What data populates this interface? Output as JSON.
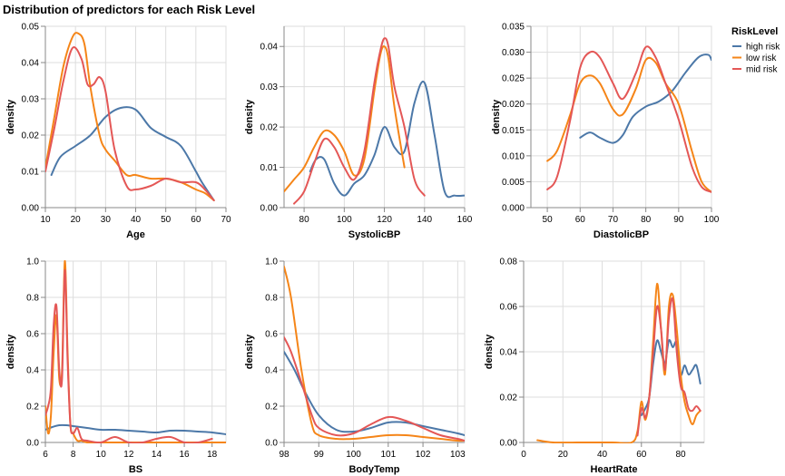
{
  "chart_data": {
    "title": "Distribution of predictors for each Risk Level",
    "legend": {
      "title": "RiskLevel",
      "placement": "top-right",
      "entries": [
        {
          "name": "high risk",
          "color": "#4c78a8"
        },
        {
          "name": "low risk",
          "color": "#f58518"
        },
        {
          "name": "mid risk",
          "color": "#e45756"
        }
      ]
    },
    "panels": [
      {
        "type": "line",
        "xlabel": "Age",
        "ylabel": "density",
        "xlim": [
          10,
          70
        ],
        "ylim": [
          0,
          0.05
        ],
        "grid": true,
        "xticks": [
          10,
          20,
          30,
          40,
          50,
          60,
          70
        ],
        "xtick_labels": [
          "10",
          "20",
          "30",
          "40",
          "50",
          "60",
          "70"
        ],
        "yticks": [
          0,
          0.01,
          0.02,
          0.03,
          0.04,
          0.05
        ],
        "ytick_labels": [
          "0.00",
          "0.01",
          "0.02",
          "0.03",
          "0.04",
          "0.05"
        ],
        "series": [
          {
            "name": "high risk",
            "x": [
              12,
              15,
              20,
              25,
              30,
              35,
              40,
              45,
              50,
              55,
              60,
              62,
              66
            ],
            "y": [
              0.009,
              0.014,
              0.017,
              0.02,
              0.025,
              0.0275,
              0.027,
              0.022,
              0.0195,
              0.017,
              0.01,
              0.007,
              0.002
            ]
          },
          {
            "name": "low risk",
            "x": [
              10,
              13,
              16,
              19,
              21,
              23,
              25,
              28,
              30,
              33,
              37,
              40,
              45,
              50,
              55,
              60,
              63,
              66
            ],
            "y": [
              0.011,
              0.025,
              0.039,
              0.047,
              0.048,
              0.045,
              0.033,
              0.02,
              0.016,
              0.013,
              0.009,
              0.009,
              0.008,
              0.008,
              0.007,
              0.005,
              0.004,
              0.002
            ]
          },
          {
            "name": "mid risk",
            "x": [
              10,
              13,
              16,
              19,
              22,
              24,
              26,
              28,
              30,
              33,
              37,
              40,
              45,
              50,
              55,
              60,
              63,
              66
            ],
            "y": [
              0.01,
              0.022,
              0.035,
              0.044,
              0.041,
              0.034,
              0.034,
              0.036,
              0.032,
              0.016,
              0.006,
              0.005,
              0.006,
              0.008,
              0.007,
              0.007,
              0.005,
              0.002
            ]
          }
        ]
      },
      {
        "type": "line",
        "xlabel": "SystolicBP",
        "ylabel": "density",
        "xlim": [
          70,
          160
        ],
        "ylim": [
          0,
          0.045
        ],
        "grid": true,
        "xticks": [
          80,
          100,
          120,
          140,
          160
        ],
        "xtick_labels": [
          "80",
          "100",
          "120",
          "140",
          "160"
        ],
        "yticks": [
          0,
          0.01,
          0.02,
          0.03,
          0.04
        ],
        "ytick_labels": [
          "0.00",
          "0.01",
          "0.02",
          "0.03",
          "0.04"
        ],
        "series": [
          {
            "name": "high risk",
            "x": [
              83,
              86,
              90,
              95,
              100,
              105,
              110,
              115,
              120,
              125,
              130,
              135,
              140,
              145,
              150,
              155,
              160
            ],
            "y": [
              0.009,
              0.012,
              0.012,
              0.006,
              0.003,
              0.006,
              0.008,
              0.013,
              0.02,
              0.015,
              0.014,
              0.026,
              0.031,
              0.018,
              0.004,
              0.003,
              0.003
            ]
          },
          {
            "name": "low risk",
            "x": [
              70,
              75,
              80,
              85,
              90,
              95,
              100,
              105,
              110,
              115,
              118,
              120,
              122,
              125,
              130
            ],
            "y": [
              0.004,
              0.007,
              0.01,
              0.015,
              0.019,
              0.018,
              0.014,
              0.008,
              0.012,
              0.029,
              0.038,
              0.04,
              0.037,
              0.025,
              0.01
            ]
          },
          {
            "name": "mid risk",
            "x": [
              75,
              80,
              85,
              90,
              95,
              100,
              105,
              110,
              115,
              118,
              120,
              122,
              125,
              130,
              135,
              140
            ],
            "y": [
              0.001,
              0.004,
              0.011,
              0.017,
              0.015,
              0.01,
              0.007,
              0.014,
              0.031,
              0.039,
              0.042,
              0.04,
              0.03,
              0.02,
              0.007,
              0.003
            ]
          }
        ]
      },
      {
        "type": "line",
        "xlabel": "DiastolicBP",
        "ylabel": "density",
        "xlim": [
          45,
          100
        ],
        "ylim": [
          0,
          0.035
        ],
        "grid": true,
        "xticks": [
          50,
          60,
          70,
          80,
          90,
          100
        ],
        "xtick_labels": [
          "50",
          "60",
          "70",
          "80",
          "90",
          "100"
        ],
        "yticks": [
          0,
          0.005,
          0.01,
          0.015,
          0.02,
          0.025,
          0.03,
          0.035
        ],
        "ytick_labels": [
          "0.000",
          "0.005",
          "0.010",
          "0.015",
          "0.020",
          "0.025",
          "0.030",
          "0.035"
        ],
        "series": [
          {
            "name": "high risk",
            "x": [
              60,
              63,
              66,
              70,
              73,
              76,
              80,
              84,
              88,
              92,
              96,
              99,
              100
            ],
            "y": [
              0.0135,
              0.0145,
              0.0135,
              0.0125,
              0.014,
              0.0175,
              0.0195,
              0.0205,
              0.0225,
              0.026,
              0.029,
              0.0295,
              0.0285
            ]
          },
          {
            "name": "low risk",
            "x": [
              50,
              53,
              57,
              60,
              63,
              66,
              70,
              73,
              77,
              80,
              83,
              86,
              90,
              94,
              97,
              100
            ],
            "y": [
              0.009,
              0.011,
              0.018,
              0.024,
              0.0255,
              0.024,
              0.019,
              0.018,
              0.023,
              0.0285,
              0.028,
              0.024,
              0.02,
              0.011,
              0.005,
              0.003
            ]
          },
          {
            "name": "mid risk",
            "x": [
              50,
              53,
              57,
              60,
              63,
              66,
              70,
              73,
              77,
              80,
              83,
              86,
              90,
              94,
              97,
              100
            ],
            "y": [
              0.0035,
              0.006,
              0.017,
              0.027,
              0.03,
              0.029,
              0.024,
              0.021,
              0.026,
              0.031,
              0.029,
              0.024,
              0.017,
              0.008,
              0.004,
              0.003
            ]
          }
        ]
      },
      {
        "type": "line",
        "xlabel": "BS",
        "ylabel": "density",
        "xlim": [
          6,
          19
        ],
        "ylim": [
          0,
          1.0
        ],
        "grid": true,
        "xticks": [
          6,
          8,
          10,
          12,
          14,
          16,
          18
        ],
        "xtick_labels": [
          "6",
          "8",
          "10",
          "12",
          "14",
          "16",
          "18"
        ],
        "yticks": [
          0,
          0.2,
          0.4,
          0.6,
          0.8,
          1.0
        ],
        "ytick_labels": [
          "0.0",
          "0.2",
          "0.4",
          "0.6",
          "0.8",
          "1.0"
        ],
        "series": [
          {
            "name": "high risk",
            "x": [
              6,
              6.5,
              7,
              7.5,
              8,
              9,
              10,
              11,
              12,
              13,
              14,
              15,
              16,
              17,
              18,
              19
            ],
            "y": [
              0.07,
              0.085,
              0.095,
              0.095,
              0.09,
              0.08,
              0.07,
              0.07,
              0.065,
              0.06,
              0.055,
              0.065,
              0.065,
              0.06,
              0.055,
              0.045
            ]
          },
          {
            "name": "low risk",
            "x": [
              6,
              6.2,
              6.4,
              6.6,
              6.8,
              7,
              7.2,
              7.4,
              7.6,
              7.8,
              8,
              8.3,
              8.6,
              9,
              10,
              12,
              14,
              16,
              19
            ],
            "y": [
              0.2,
              0.05,
              0.15,
              0.5,
              0.7,
              0.35,
              0.4,
              1.0,
              0.5,
              0.1,
              0.05,
              0.01,
              0.01,
              0.0,
              0.0,
              0.0,
              0.0,
              0.0,
              0.0
            ]
          },
          {
            "name": "mid risk",
            "x": [
              6,
              6.2,
              6.4,
              6.6,
              6.8,
              7,
              7.2,
              7.4,
              7.6,
              7.8,
              8,
              8.3,
              8.6,
              9,
              10,
              11,
              12,
              13,
              14,
              15,
              16,
              17,
              18
            ],
            "y": [
              0.15,
              0.2,
              0.3,
              0.65,
              0.75,
              0.4,
              0.35,
              0.95,
              0.45,
              0.1,
              0.05,
              0.08,
              0.02,
              0.01,
              0.0,
              0.03,
              0.0,
              0.0,
              0.02,
              0.03,
              0.0,
              0.0,
              0.02
            ]
          }
        ]
      },
      {
        "type": "line",
        "xlabel": "BodyTemp",
        "ylabel": "density",
        "xlim": [
          98,
          103.2
        ],
        "ylim": [
          0,
          1.0
        ],
        "grid": true,
        "xticks": [
          98,
          99,
          100,
          101,
          102,
          103
        ],
        "xtick_labels": [
          "98",
          "99",
          "100",
          "101",
          "102",
          "103"
        ],
        "yticks": [
          0,
          0.2,
          0.4,
          0.6,
          0.8,
          1.0
        ],
        "ytick_labels": [
          "0.0",
          "0.2",
          "0.4",
          "0.6",
          "0.8",
          "1.0"
        ],
        "series": [
          {
            "name": "high risk",
            "x": [
              98,
              98.3,
              98.6,
              99,
              99.5,
              100,
              100.5,
              101,
              101.5,
              102,
              102.5,
              103,
              103.2
            ],
            "y": [
              0.5,
              0.4,
              0.28,
              0.15,
              0.07,
              0.06,
              0.08,
              0.11,
              0.11,
              0.09,
              0.07,
              0.05,
              0.04
            ]
          },
          {
            "name": "low risk",
            "x": [
              98,
              98.2,
              98.5,
              98.8,
              99,
              99.5,
              100,
              100.5,
              101,
              101.5,
              102,
              102.5,
              103,
              103.2
            ],
            "y": [
              0.97,
              0.8,
              0.4,
              0.1,
              0.04,
              0.02,
              0.02,
              0.03,
              0.04,
              0.04,
              0.03,
              0.02,
              0.01,
              0.01
            ]
          },
          {
            "name": "mid risk",
            "x": [
              98,
              98.2,
              98.5,
              98.8,
              99,
              99.5,
              100,
              100.5,
              101,
              101.5,
              102,
              102.5,
              103,
              103.2
            ],
            "y": [
              0.58,
              0.5,
              0.33,
              0.15,
              0.08,
              0.04,
              0.05,
              0.1,
              0.14,
              0.12,
              0.08,
              0.04,
              0.02,
              0.01
            ]
          }
        ]
      },
      {
        "type": "line",
        "xlabel": "HeartRate",
        "ylabel": "density",
        "xlim": [
          0,
          92
        ],
        "ylim": [
          0,
          0.08
        ],
        "grid": true,
        "xticks": [
          0,
          20,
          40,
          60,
          80
        ],
        "xtick_labels": [
          "0",
          "20",
          "40",
          "60",
          "80"
        ],
        "yticks": [
          0,
          0.02,
          0.04,
          0.06,
          0.08
        ],
        "ytick_labels": [
          "0.00",
          "0.02",
          "0.04",
          "0.06",
          "0.08"
        ],
        "series": [
          {
            "name": "high risk",
            "x": [
              60,
              62,
              64,
              66,
              68,
              70,
              72,
              74,
              76,
              78,
              80,
              82,
              84,
              86,
              88,
              90
            ],
            "y": [
              0.012,
              0.015,
              0.02,
              0.035,
              0.045,
              0.04,
              0.035,
              0.045,
              0.042,
              0.044,
              0.03,
              0.034,
              0.03,
              0.032,
              0.034,
              0.026
            ]
          },
          {
            "name": "low risk",
            "x": [
              7,
              15,
              30,
              45,
              55,
              58,
              60,
              62,
              64,
              66,
              68,
              70,
              72,
              74,
              76,
              78,
              80,
              82,
              84,
              86,
              88,
              90
            ],
            "y": [
              0.001,
              0.0,
              0.0,
              0.0,
              0.0,
              0.005,
              0.018,
              0.01,
              0.02,
              0.045,
              0.07,
              0.05,
              0.03,
              0.06,
              0.065,
              0.05,
              0.03,
              0.018,
              0.012,
              0.008,
              0.012,
              0.014
            ]
          },
          {
            "name": "mid risk",
            "x": [
              58,
              60,
              62,
              64,
              66,
              68,
              70,
              72,
              74,
              76,
              78,
              80,
              82,
              84,
              86,
              88,
              90
            ],
            "y": [
              0.003,
              0.015,
              0.011,
              0.02,
              0.04,
              0.06,
              0.05,
              0.032,
              0.055,
              0.063,
              0.04,
              0.025,
              0.022,
              0.015,
              0.014,
              0.016,
              0.014
            ]
          }
        ]
      }
    ]
  }
}
